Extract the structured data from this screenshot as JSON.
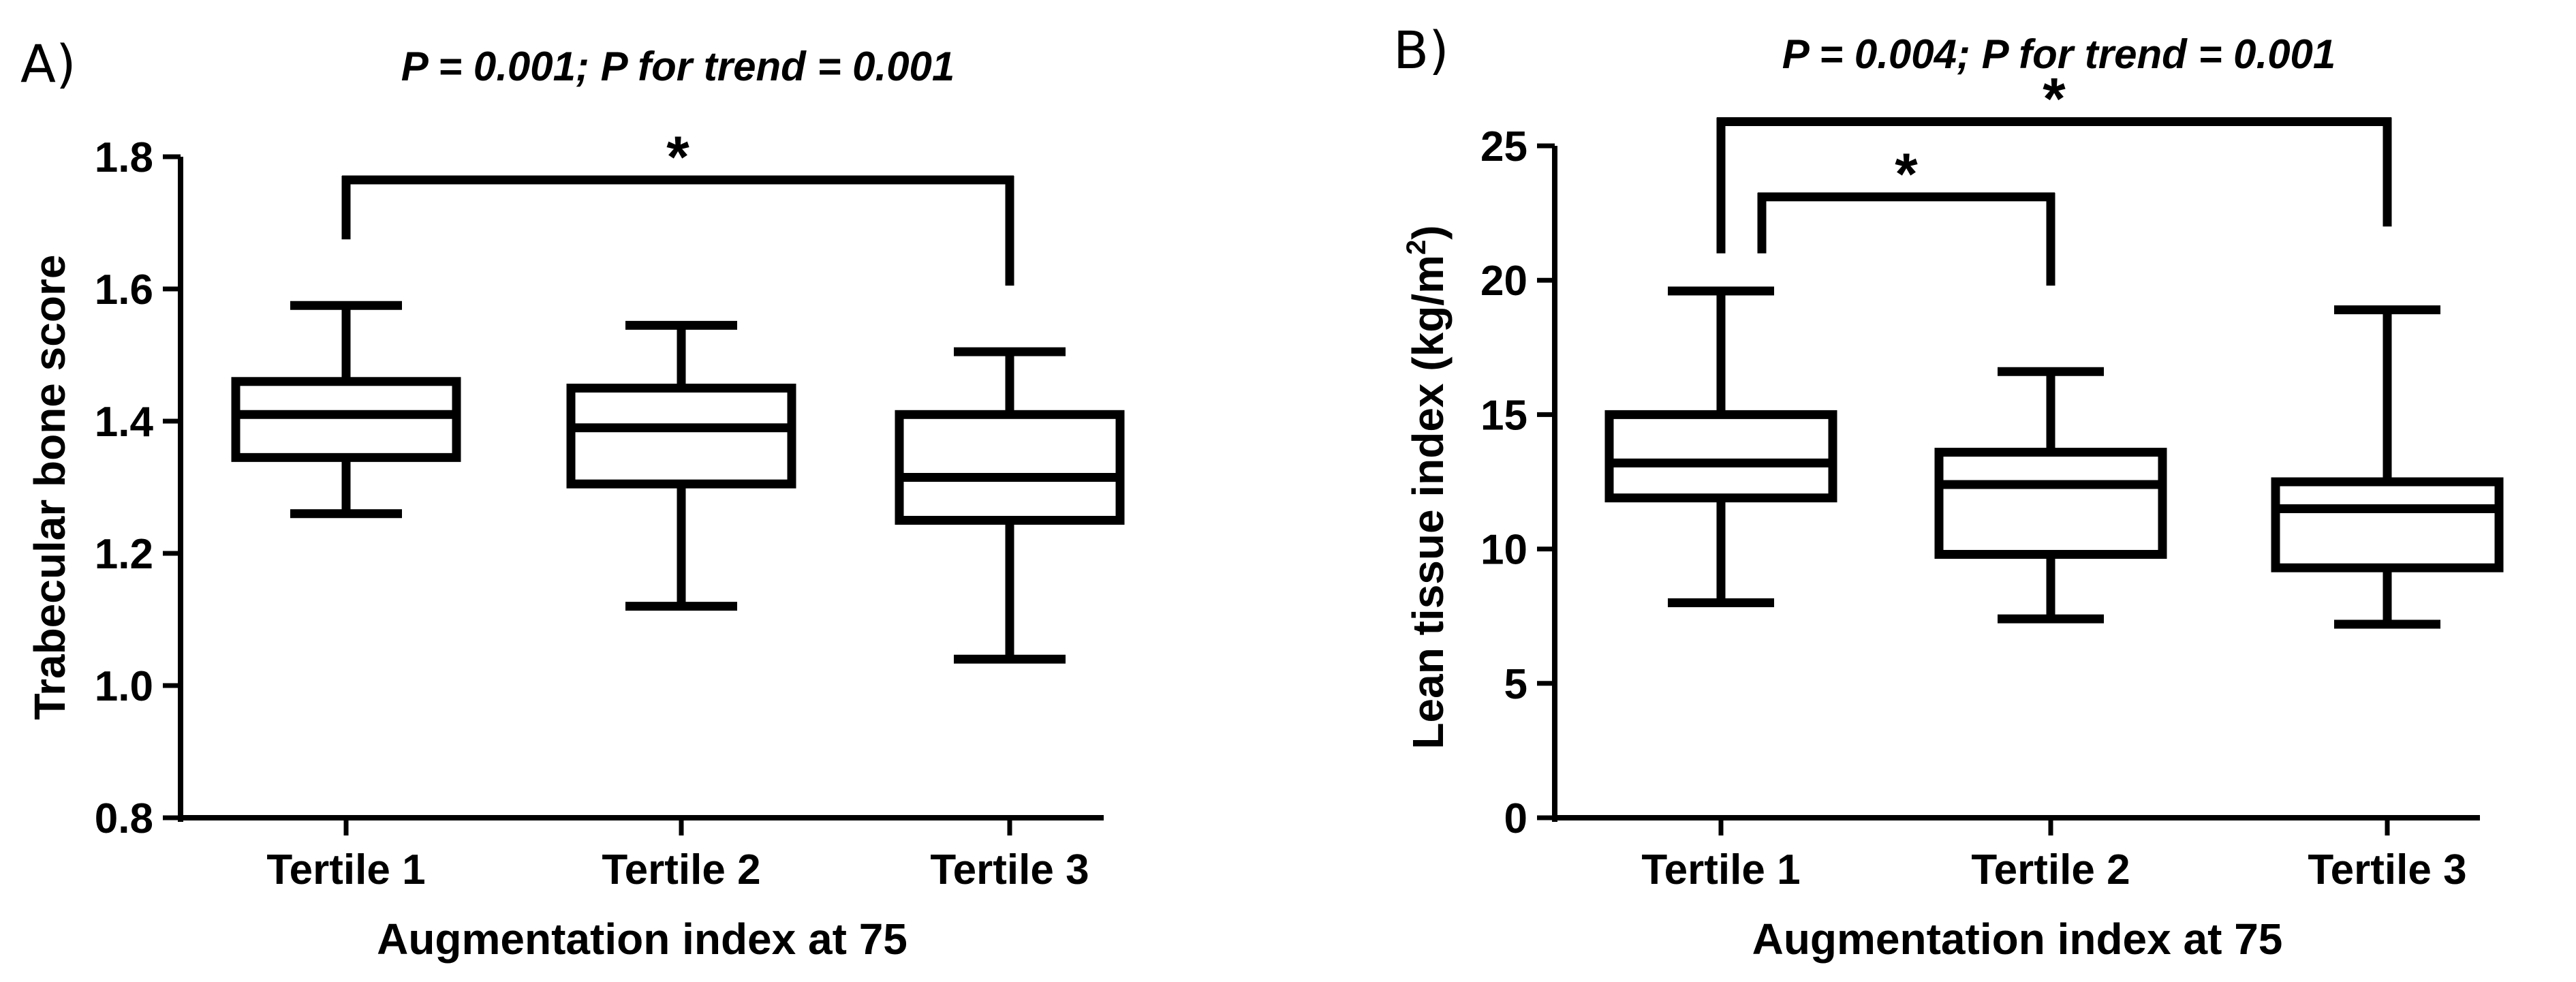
{
  "chart_data": [
    {
      "type": "box",
      "panel_label": "A)",
      "title": "P = 0.001; P for trend = 0.001",
      "xlabel": "Augmentation index at 75",
      "ylabel": "Trabecular bone score",
      "ylim": [
        0.8,
        1.8
      ],
      "yticks": [
        0.8,
        1.0,
        1.2,
        1.4,
        1.6,
        1.8
      ],
      "ytick_labels": [
        "0.8",
        "1.0",
        "1.2",
        "1.4",
        "1.6",
        "1.8"
      ],
      "categories": [
        "Tertile 1",
        "Tertile 2",
        "Tertile 3"
      ],
      "boxes": [
        {
          "min": 1.26,
          "q1": 1.345,
          "median": 1.41,
          "q3": 1.46,
          "max": 1.575
        },
        {
          "min": 1.12,
          "q1": 1.305,
          "median": 1.39,
          "q3": 1.45,
          "max": 1.545
        },
        {
          "min": 1.04,
          "q1": 1.25,
          "median": 1.315,
          "q3": 1.41,
          "max": 1.505
        }
      ],
      "significance": [
        {
          "from": 0,
          "to": 2,
          "label": "*",
          "y": 1.765,
          "left_end": 1.675,
          "right_end": 1.605
        }
      ]
    },
    {
      "type": "box",
      "panel_label": "B)",
      "title": "P = 0.004; P for trend = 0.001",
      "xlabel": "Augmentation index at 75",
      "ylabel": "Lean tissue index (kg/m",
      "ylabel_superscript": "2",
      "ylabel_suffix": ")",
      "ylim": [
        0,
        25
      ],
      "yticks": [
        0,
        5,
        10,
        15,
        20,
        25
      ],
      "ytick_labels": [
        "0",
        "5",
        "10",
        "15",
        "20",
        "25"
      ],
      "categories": [
        "Tertile 1",
        "Tertile 2",
        "Tertile 3"
      ],
      "boxes": [
        {
          "min": 8.0,
          "q1": 11.9,
          "median": 13.2,
          "q3": 15.0,
          "max": 19.6
        },
        {
          "min": 7.4,
          "q1": 9.8,
          "median": 12.4,
          "q3": 13.6,
          "max": 16.6
        },
        {
          "min": 7.2,
          "q1": 9.3,
          "median": 11.5,
          "q3": 12.5,
          "max": 18.9
        }
      ],
      "significance": [
        {
          "from": 0,
          "to": 1,
          "label": "*",
          "y": 23.1,
          "left_end": 21.0,
          "right_end": 19.8,
          "left_offset": 1
        },
        {
          "from": 0,
          "to": 2,
          "label": "*",
          "y": 25.9,
          "left_end": 21.0,
          "right_end": 22.0,
          "left_offset": 0
        }
      ]
    }
  ]
}
